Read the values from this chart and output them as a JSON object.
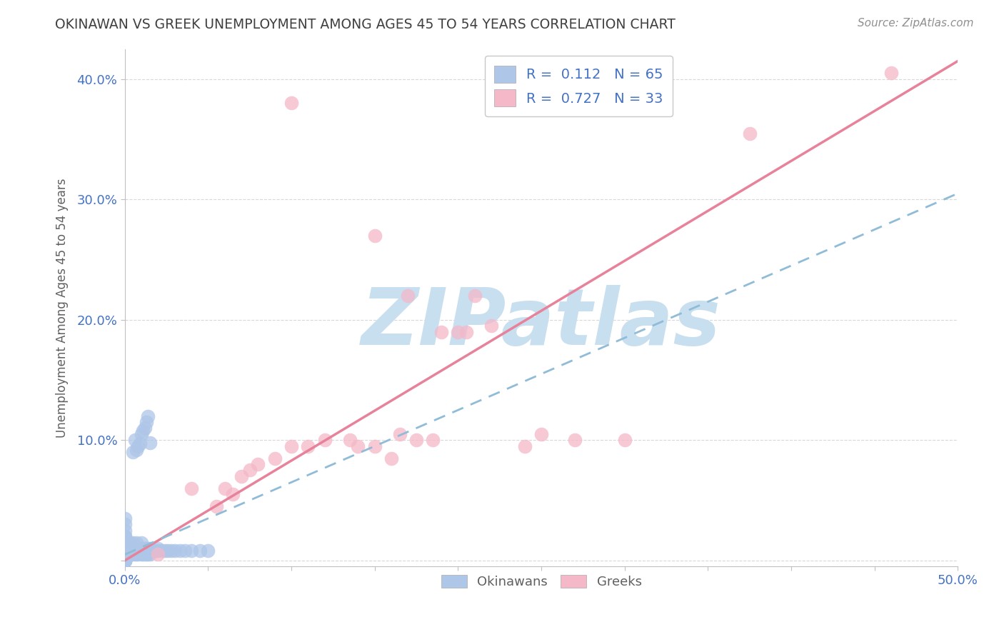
{
  "title": "OKINAWAN VS GREEK UNEMPLOYMENT AMONG AGES 45 TO 54 YEARS CORRELATION CHART",
  "source": "Source: ZipAtlas.com",
  "ylabel": "Unemployment Among Ages 45 to 54 years",
  "xlim": [
    0.0,
    0.5
  ],
  "ylim": [
    -0.005,
    0.425
  ],
  "okinawan_color": "#aec6e8",
  "greek_color": "#f4b8c8",
  "okinawan_line_color": "#90bcd8",
  "greek_line_color": "#e8829a",
  "okinawan_R": 0.112,
  "okinawan_N": 65,
  "greek_R": 0.727,
  "greek_N": 33,
  "watermark": "ZIPatlas",
  "watermark_color": "#c8dff0",
  "background_color": "#ffffff",
  "grid_color": "#d8d8d8",
  "title_color": "#404040",
  "tick_color": "#4472c4",
  "label_color": "#606060",
  "greek_scatter_x": [
    0.02,
    0.04,
    0.055,
    0.06,
    0.065,
    0.07,
    0.075,
    0.08,
    0.09,
    0.1,
    0.11,
    0.12,
    0.135,
    0.14,
    0.15,
    0.16,
    0.165,
    0.175,
    0.185,
    0.19,
    0.205,
    0.21,
    0.22,
    0.24,
    0.25,
    0.27,
    0.1,
    0.15,
    0.17,
    0.2,
    0.3,
    0.375,
    0.46
  ],
  "greek_scatter_y": [
    0.005,
    0.06,
    0.045,
    0.06,
    0.055,
    0.07,
    0.075,
    0.08,
    0.085,
    0.095,
    0.095,
    0.1,
    0.1,
    0.095,
    0.095,
    0.085,
    0.105,
    0.1,
    0.1,
    0.19,
    0.19,
    0.22,
    0.195,
    0.095,
    0.105,
    0.1,
    0.38,
    0.27,
    0.22,
    0.19,
    0.1,
    0.355,
    0.405
  ],
  "ok_scatter_x": [
    0.0,
    0.0,
    0.0,
    0.0,
    0.0,
    0.0,
    0.0,
    0.0,
    0.0,
    0.0,
    0.0,
    0.0,
    0.0,
    0.0,
    0.0,
    0.0,
    0.0,
    0.0,
    0.0,
    0.0,
    0.003,
    0.003,
    0.003,
    0.004,
    0.004,
    0.005,
    0.005,
    0.005,
    0.006,
    0.006,
    0.007,
    0.007,
    0.007,
    0.008,
    0.008,
    0.009,
    0.01,
    0.01,
    0.01,
    0.011,
    0.011,
    0.012,
    0.012,
    0.013,
    0.013,
    0.014,
    0.014,
    0.015,
    0.015,
    0.016,
    0.017,
    0.018,
    0.019,
    0.02,
    0.02,
    0.022,
    0.024,
    0.026,
    0.028,
    0.03,
    0.033,
    0.036,
    0.04,
    0.045,
    0.05
  ],
  "ok_scatter_y": [
    0.0,
    0.0,
    0.0,
    0.0,
    0.0,
    0.0,
    0.005,
    0.005,
    0.005,
    0.01,
    0.01,
    0.01,
    0.01,
    0.015,
    0.015,
    0.02,
    0.02,
    0.025,
    0.03,
    0.035,
    0.005,
    0.01,
    0.015,
    0.005,
    0.01,
    0.005,
    0.01,
    0.015,
    0.005,
    0.01,
    0.005,
    0.01,
    0.015,
    0.005,
    0.01,
    0.008,
    0.005,
    0.01,
    0.015,
    0.005,
    0.01,
    0.005,
    0.01,
    0.005,
    0.01,
    0.005,
    0.01,
    0.005,
    0.01,
    0.008,
    0.008,
    0.008,
    0.008,
    0.008,
    0.01,
    0.008,
    0.008,
    0.008,
    0.008,
    0.008,
    0.008,
    0.008,
    0.008,
    0.008,
    0.008
  ],
  "ok_extra_x": [
    0.005,
    0.006,
    0.007,
    0.008,
    0.009,
    0.01,
    0.011,
    0.012,
    0.013,
    0.014,
    0.015
  ],
  "ok_extra_y": [
    0.09,
    0.1,
    0.092,
    0.095,
    0.097,
    0.105,
    0.108,
    0.11,
    0.115,
    0.12,
    0.098
  ],
  "greek_trend_x": [
    0.0,
    0.5
  ],
  "greek_trend_y": [
    0.0,
    0.415
  ],
  "ok_trend_x": [
    0.0,
    0.5
  ],
  "ok_trend_y": [
    0.005,
    0.305
  ]
}
